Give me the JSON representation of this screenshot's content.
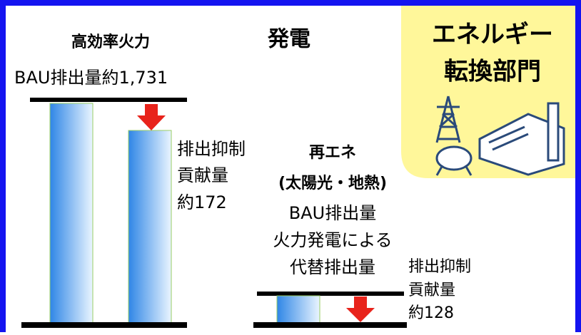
{
  "header": {
    "title": "発電",
    "sector": [
      "エネルギー",
      "転換部門"
    ]
  },
  "thermal": {
    "label": "高効率火力",
    "bau": "BAU排出量約1,731",
    "reduction": [
      "排出抑制",
      "貢献量",
      "約172"
    ]
  },
  "renewable": {
    "label": [
      "再エネ",
      "(太陽光・地熱)"
    ],
    "bau": [
      "BAU排出量",
      "火力発電による",
      "代替排出量"
    ],
    "reduction": [
      "排出抑制",
      "貢献量",
      "約128"
    ]
  }
}
